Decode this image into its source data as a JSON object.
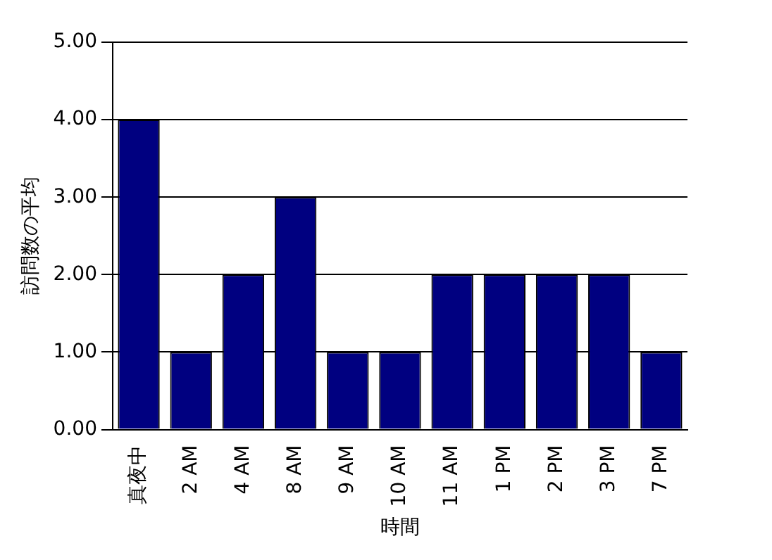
{
  "chart_data": {
    "type": "bar",
    "ylabel": "訪問数の平均",
    "xlabel": "時間",
    "categories": [
      "真夜中",
      "2 AM",
      "4 AM",
      "8 AM",
      "9 AM",
      "10 AM",
      "11 AM",
      "1 PM",
      "2 PM",
      "3 PM",
      "7 PM"
    ],
    "values": [
      4,
      1,
      2,
      3,
      1,
      1,
      2,
      2,
      2,
      2,
      1
    ],
    "color": "#000080",
    "ylim": [
      0,
      5
    ],
    "yticks": [
      {
        "value": 0,
        "label": "0.00"
      },
      {
        "value": 1,
        "label": "1.00"
      },
      {
        "value": 2,
        "label": "2.00"
      },
      {
        "value": 3,
        "label": "3.00"
      },
      {
        "value": 4,
        "label": "4.00"
      },
      {
        "value": 5,
        "label": "5.00"
      }
    ],
    "grid": "y",
    "legend": false
  }
}
